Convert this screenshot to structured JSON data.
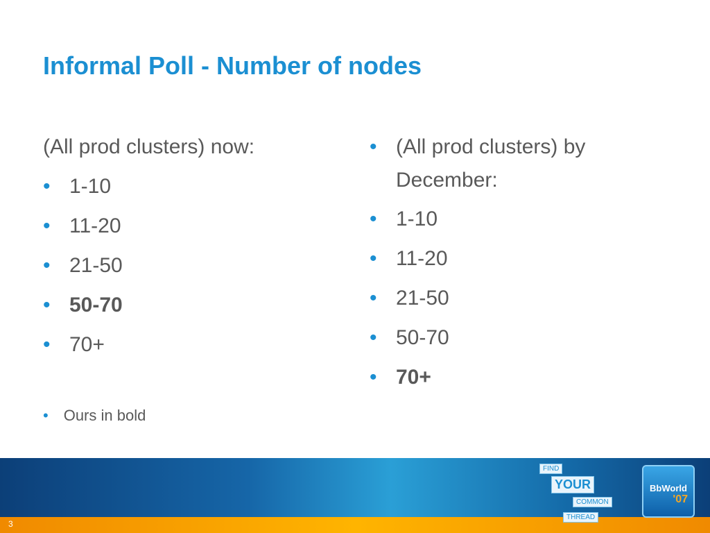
{
  "header": {
    "title": "Informal Poll - Number of nodes"
  },
  "left": {
    "heading": "(All prod clusters) now:",
    "items": [
      {
        "text": "1-10",
        "bold": false
      },
      {
        "text": "11-20",
        "bold": false
      },
      {
        "text": "21-50",
        "bold": false
      },
      {
        "text": "50-70",
        "bold": true
      },
      {
        "text": "70+",
        "bold": false
      }
    ],
    "note": "Ours in bold"
  },
  "right": {
    "heading": "(All prod clusters) by December:",
    "items": [
      {
        "text": "1-10",
        "bold": false
      },
      {
        "text": "11-20",
        "bold": false
      },
      {
        "text": "21-50",
        "bold": false
      },
      {
        "text": "50-70",
        "bold": false
      },
      {
        "text": "70+",
        "bold": true
      }
    ]
  },
  "footer": {
    "slide_number": "3",
    "logo": {
      "tags": [
        "FIND",
        "YOUR",
        "COMMON",
        "THREAD"
      ],
      "brand": "BbWorld",
      "year": "'07"
    }
  }
}
